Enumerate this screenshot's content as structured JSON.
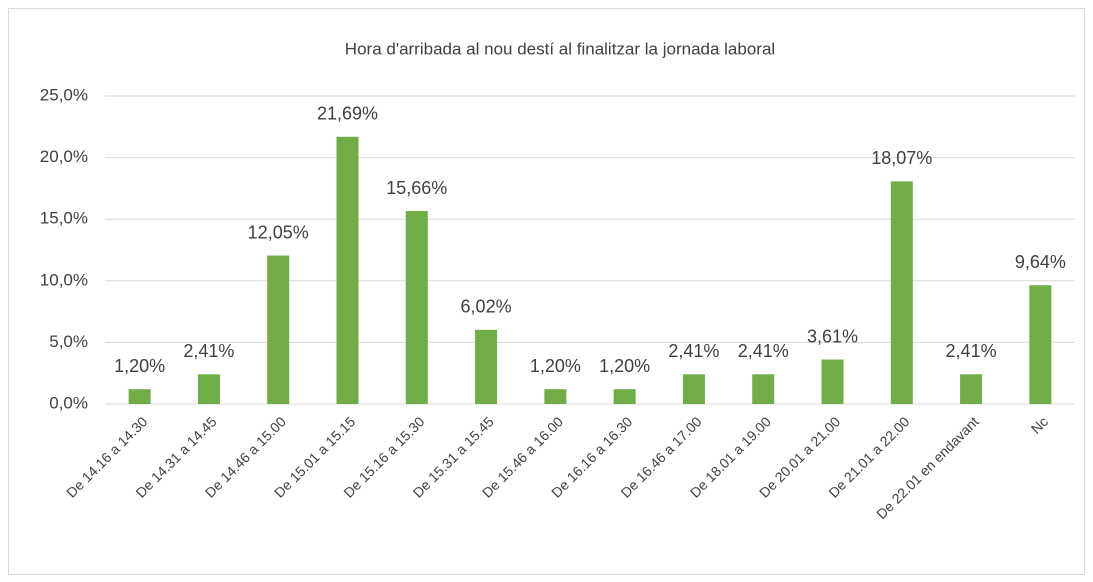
{
  "chart_data": {
    "type": "bar",
    "title": "Hora d'arribada al nou destí al finalitzar la jornada laboral",
    "categories": [
      "De 14.16 a 14.30",
      "De 14.31 a 14.45",
      "De 14.46 a 15.00",
      "De 15.01 a 15.15",
      "De 15.16 a 15.30",
      "De 15.31 a 15.45",
      "De 15.46 a 16.00",
      "De 16.16 a 16.30",
      "De 16.46 a 17.00",
      "De 18.01 a 19.00",
      "De 20.01 a 21.00",
      "De 21.01 a 22.00",
      "De 22.01 en endavant",
      "Nc"
    ],
    "values": [
      1.2,
      2.41,
      12.05,
      21.69,
      15.66,
      6.02,
      1.2,
      1.2,
      2.41,
      2.41,
      3.61,
      18.07,
      2.41,
      9.64
    ],
    "value_labels": [
      "1,20%",
      "2,41%",
      "12,05%",
      "21,69%",
      "15,66%",
      "6,02%",
      "1,20%",
      "1,20%",
      "2,41%",
      "2,41%",
      "3,61%",
      "18,07%",
      "2,41%",
      "9,64%"
    ],
    "color": "#70ad47",
    "ylim": [
      0,
      25
    ],
    "yticks": [
      {
        "value": 0,
        "label": "0,0%"
      },
      {
        "value": 5,
        "label": "5,0%"
      },
      {
        "value": 10,
        "label": "10,0%"
      },
      {
        "value": 15,
        "label": "15,0%"
      },
      {
        "value": 20,
        "label": "20,0%"
      },
      {
        "value": 25,
        "label": "25,0%"
      }
    ],
    "grid": true
  }
}
